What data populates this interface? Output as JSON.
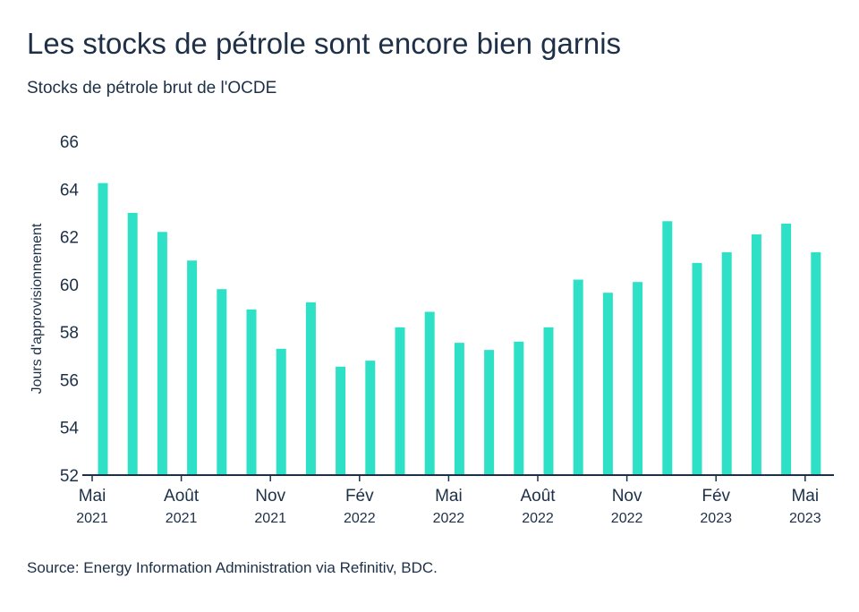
{
  "title": "Les stocks de pétrole sont encore bien garnis",
  "subtitle": "Stocks de pétrole brut de l'OCDE",
  "source": "Source: Energy Information Administration via Refinitiv, BDC.",
  "colors": {
    "bar": "#2ee0c5",
    "axis": "#1d3047",
    "text": "#1d3047"
  },
  "chart_data": {
    "type": "bar",
    "title": "Les stocks de pétrole sont encore bien garnis",
    "subtitle": "Stocks de pétrole brut de l'OCDE",
    "ylabel": "Jours d'approvisionnement",
    "xlabel": "",
    "ylim": [
      52,
      66
    ],
    "yticks": [
      52,
      54,
      56,
      58,
      60,
      62,
      64,
      66
    ],
    "grid": false,
    "categories": [
      "2021-05",
      "2021-06",
      "2021-07",
      "2021-08",
      "2021-09",
      "2021-10",
      "2021-11",
      "2021-12",
      "2022-01",
      "2022-02",
      "2022-03",
      "2022-04",
      "2022-05",
      "2022-06",
      "2022-07",
      "2022-08",
      "2022-09",
      "2022-10",
      "2022-11",
      "2022-12",
      "2023-01",
      "2023-02",
      "2023-03",
      "2023-04",
      "2023-05"
    ],
    "values": [
      64.25,
      63.0,
      62.2,
      61.0,
      59.8,
      58.95,
      57.3,
      59.25,
      56.55,
      56.8,
      58.2,
      58.85,
      57.55,
      57.25,
      57.6,
      58.2,
      60.2,
      59.65,
      60.1,
      62.65,
      60.9,
      61.35,
      62.1,
      62.55,
      61.35
    ],
    "xtick_labels": [
      {
        "category": "2021-05",
        "month": "Mai",
        "year": "2021"
      },
      {
        "category": "2021-08",
        "month": "Août",
        "year": "2021"
      },
      {
        "category": "2021-11",
        "month": "Nov",
        "year": "2021"
      },
      {
        "category": "2022-02",
        "month": "Fév",
        "year": "2022"
      },
      {
        "category": "2022-05",
        "month": "Mai",
        "year": "2022"
      },
      {
        "category": "2022-08",
        "month": "Août",
        "year": "2022"
      },
      {
        "category": "2022-11",
        "month": "Nov",
        "year": "2022"
      },
      {
        "category": "2023-02",
        "month": "Fév",
        "year": "2023"
      },
      {
        "category": "2023-05",
        "month": "Mai",
        "year": "2023"
      }
    ]
  }
}
